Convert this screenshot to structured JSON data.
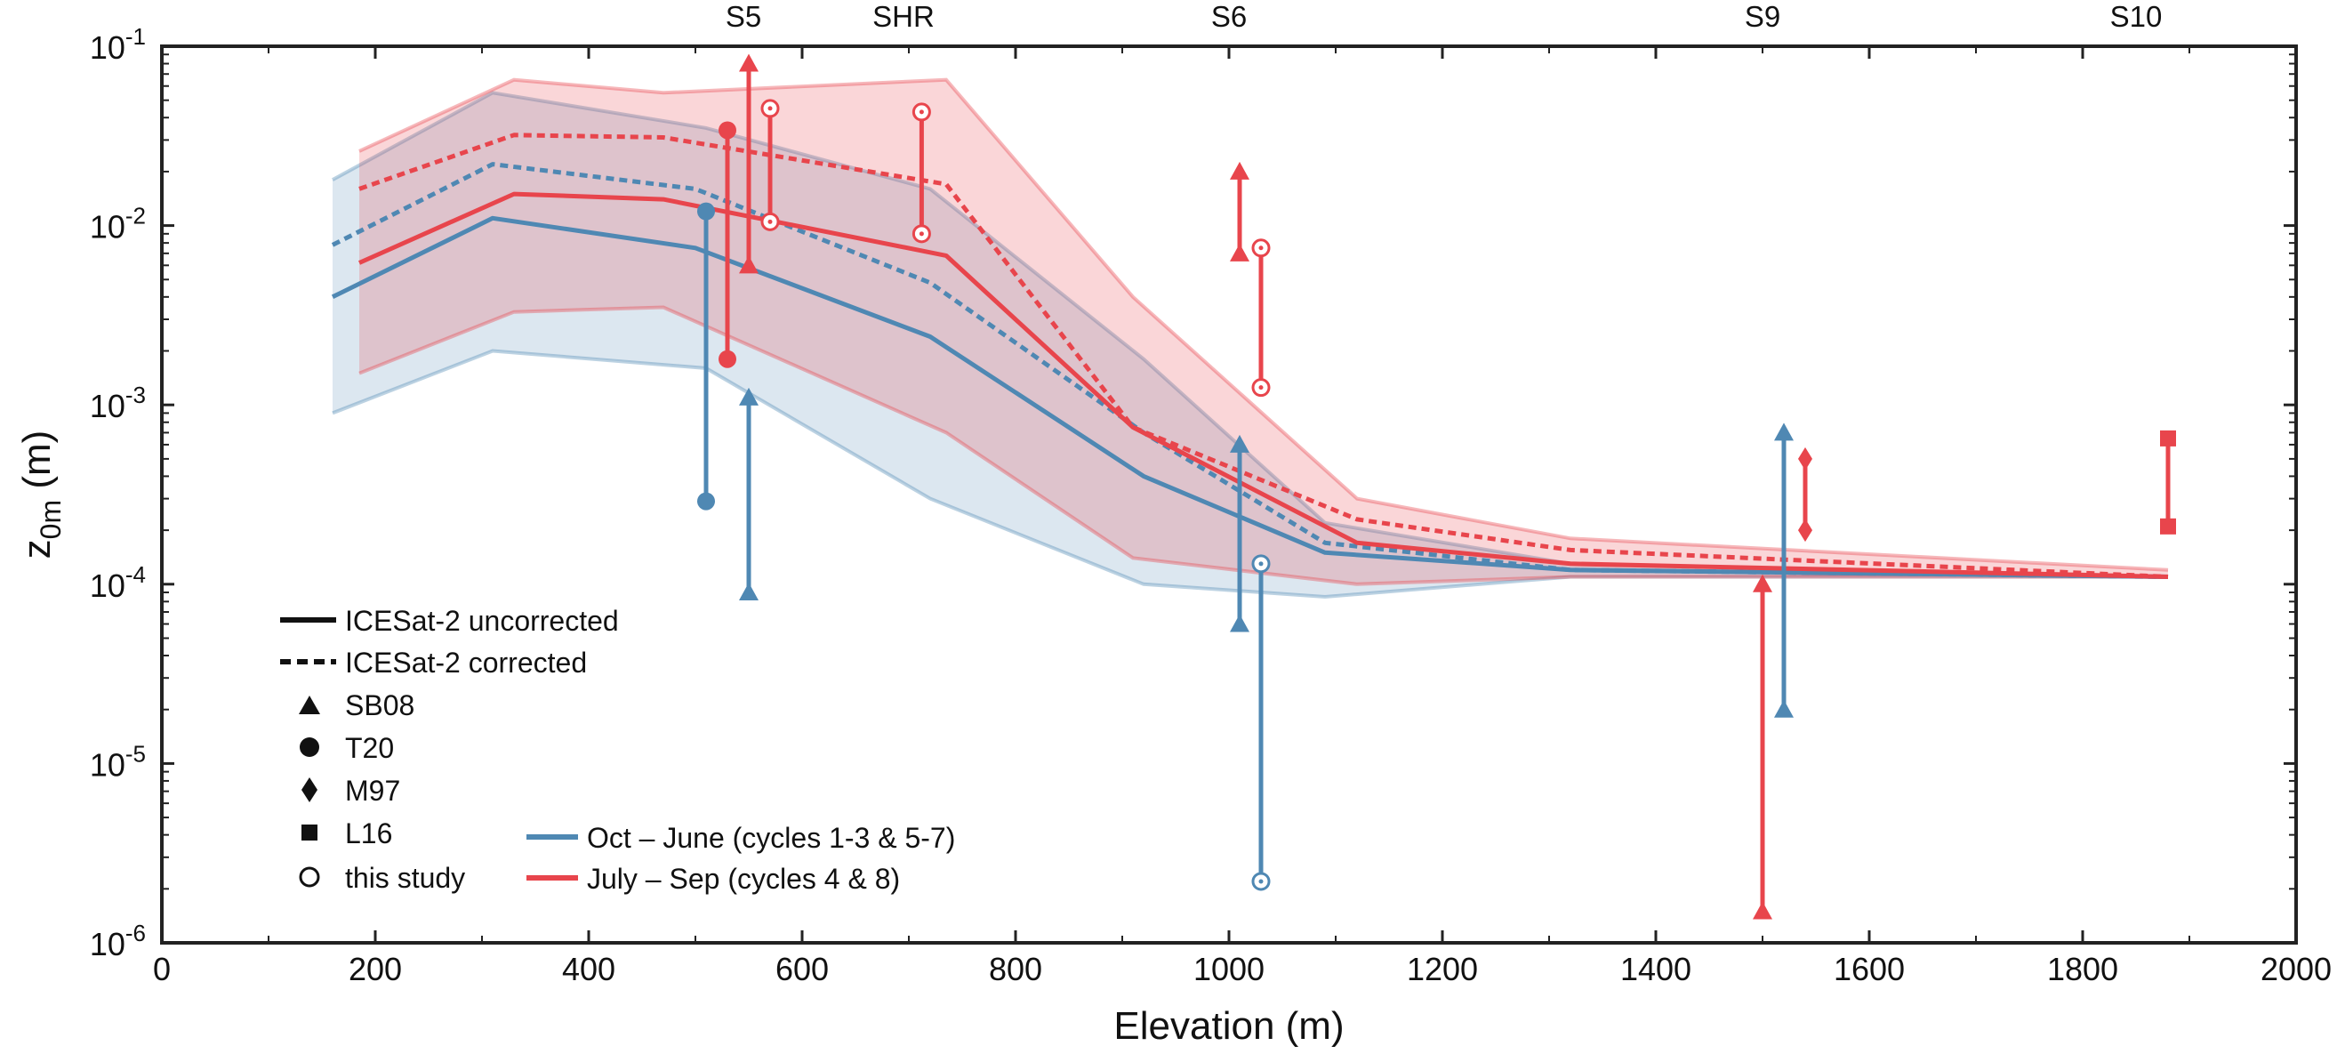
{
  "chart_data": {
    "type": "line",
    "xlabel": "Elevation (m)",
    "ylabel_main": "z",
    "ylabel_sub": "0m",
    "ylabel_unit": " (m)",
    "xlim": [
      0,
      2000
    ],
    "ylim": [
      1e-06,
      0.1
    ],
    "yscale": "log",
    "grid": false,
    "x_ticks": [
      0,
      200,
      400,
      600,
      800,
      1000,
      1200,
      1400,
      1600,
      1800,
      2000
    ],
    "y_ticks": [
      {
        "value": 1e-06,
        "exp": "-6"
      },
      {
        "value": 1e-05,
        "exp": "-5"
      },
      {
        "value": 0.0001,
        "exp": "-4"
      },
      {
        "value": 0.001,
        "exp": "-3"
      },
      {
        "value": 0.01,
        "exp": "-2"
      },
      {
        "value": 0.1,
        "exp": "-1"
      }
    ],
    "sites": [
      {
        "label": "S5",
        "x": 545
      },
      {
        "label": "SHR",
        "x": 695
      },
      {
        "label": "S6",
        "x": 1000
      },
      {
        "label": "S9",
        "x": 1500
      },
      {
        "label": "S10",
        "x": 1850
      }
    ],
    "colors": {
      "blue": "#4f88b3",
      "red": "#e8454c"
    },
    "bands": [
      {
        "color": "blue",
        "x": [
          160,
          310,
          510,
          720,
          920,
          1090,
          1320,
          1880
        ],
        "upper": [
          0.018,
          0.055,
          0.035,
          0.016,
          0.0018,
          0.00022,
          0.00013,
          0.00011
        ],
        "lower": [
          0.0009,
          0.002,
          0.0016,
          0.0003,
          0.0001,
          8.5e-05,
          0.00011,
          0.00011
        ]
      },
      {
        "color": "red",
        "x": [
          185,
          330,
          470,
          735,
          910,
          1120,
          1320,
          1880
        ],
        "upper": [
          0.026,
          0.065,
          0.055,
          0.065,
          0.004,
          0.0003,
          0.00018,
          0.00012
        ],
        "lower": [
          0.0015,
          0.0033,
          0.0035,
          0.0007,
          0.00014,
          0.0001,
          0.00011,
          0.00011
        ]
      }
    ],
    "series": [
      {
        "color": "blue",
        "style": "solid",
        "x": [
          160,
          310,
          500,
          720,
          920,
          1090,
          1320,
          1880
        ],
        "y": [
          0.004,
          0.011,
          0.0075,
          0.0024,
          0.0004,
          0.00015,
          0.00012,
          0.00011
        ]
      },
      {
        "color": "blue",
        "style": "dashed",
        "x": [
          160,
          310,
          500,
          720,
          920,
          1090,
          1320,
          1880
        ],
        "y": [
          0.0078,
          0.022,
          0.016,
          0.0048,
          0.0007,
          0.00017,
          0.00012,
          0.00011
        ]
      },
      {
        "color": "red",
        "style": "solid",
        "x": [
          185,
          330,
          470,
          735,
          910,
          1120,
          1320,
          1880
        ],
        "y": [
          0.0062,
          0.015,
          0.014,
          0.0068,
          0.00075,
          0.00017,
          0.00013,
          0.00011
        ]
      },
      {
        "color": "red",
        "style": "dashed",
        "x": [
          185,
          330,
          470,
          735,
          910,
          1120,
          1320,
          1880
        ],
        "y": [
          0.016,
          0.032,
          0.031,
          0.017,
          0.00075,
          0.00023,
          0.000155,
          0.00011
        ]
      }
    ],
    "observations": [
      {
        "color": "blue",
        "marker": "circle",
        "x": 510,
        "y": [
          0.00029,
          0.012
        ]
      },
      {
        "color": "red",
        "marker": "circle",
        "x": 530,
        "y": [
          0.0018,
          0.034
        ]
      },
      {
        "color": "blue",
        "marker": "triangle",
        "x": 550,
        "y": [
          9e-05,
          0.0011
        ]
      },
      {
        "color": "red",
        "marker": "triangle",
        "x": 550,
        "y": [
          0.006,
          0.08
        ]
      },
      {
        "color": "red",
        "marker": "open",
        "x": 570,
        "y": [
          0.0105,
          0.045
        ]
      },
      {
        "color": "red",
        "marker": "open",
        "x": 712,
        "y": [
          0.009,
          0.043
        ]
      },
      {
        "color": "blue",
        "marker": "triangle",
        "x": 1010,
        "y": [
          6e-05,
          0.0006
        ]
      },
      {
        "color": "red",
        "marker": "triangle",
        "x": 1010,
        "y": [
          0.007,
          0.02
        ]
      },
      {
        "color": "red",
        "marker": "open",
        "x": 1030,
        "y": [
          0.00125,
          0.0075
        ]
      },
      {
        "color": "blue",
        "marker": "open",
        "x": 1030,
        "y": [
          2.2e-06,
          0.00013
        ]
      },
      {
        "color": "red",
        "marker": "triangle",
        "x": 1500,
        "y": [
          1.5e-06,
          0.0001
        ]
      },
      {
        "color": "blue",
        "marker": "triangle",
        "x": 1520,
        "y": [
          2e-05,
          0.0007
        ]
      },
      {
        "color": "red",
        "marker": "diamond",
        "x": 1540,
        "y": [
          0.0002,
          0.0005
        ]
      },
      {
        "color": "red",
        "marker": "square",
        "x": 1880,
        "y": [
          0.00021,
          0.00065
        ]
      }
    ],
    "legend": {
      "uncorrected": "ICESat-2 uncorrected",
      "corrected": "ICESat-2 corrected",
      "sb08": "SB08",
      "t20": "T20",
      "m97": "M97",
      "l16": "L16",
      "this_study": "this study",
      "oct_june": "Oct – June (cycles 1-3 & 5-7)",
      "july_sep": "July – Sep (cycles 4 & 8)"
    }
  }
}
